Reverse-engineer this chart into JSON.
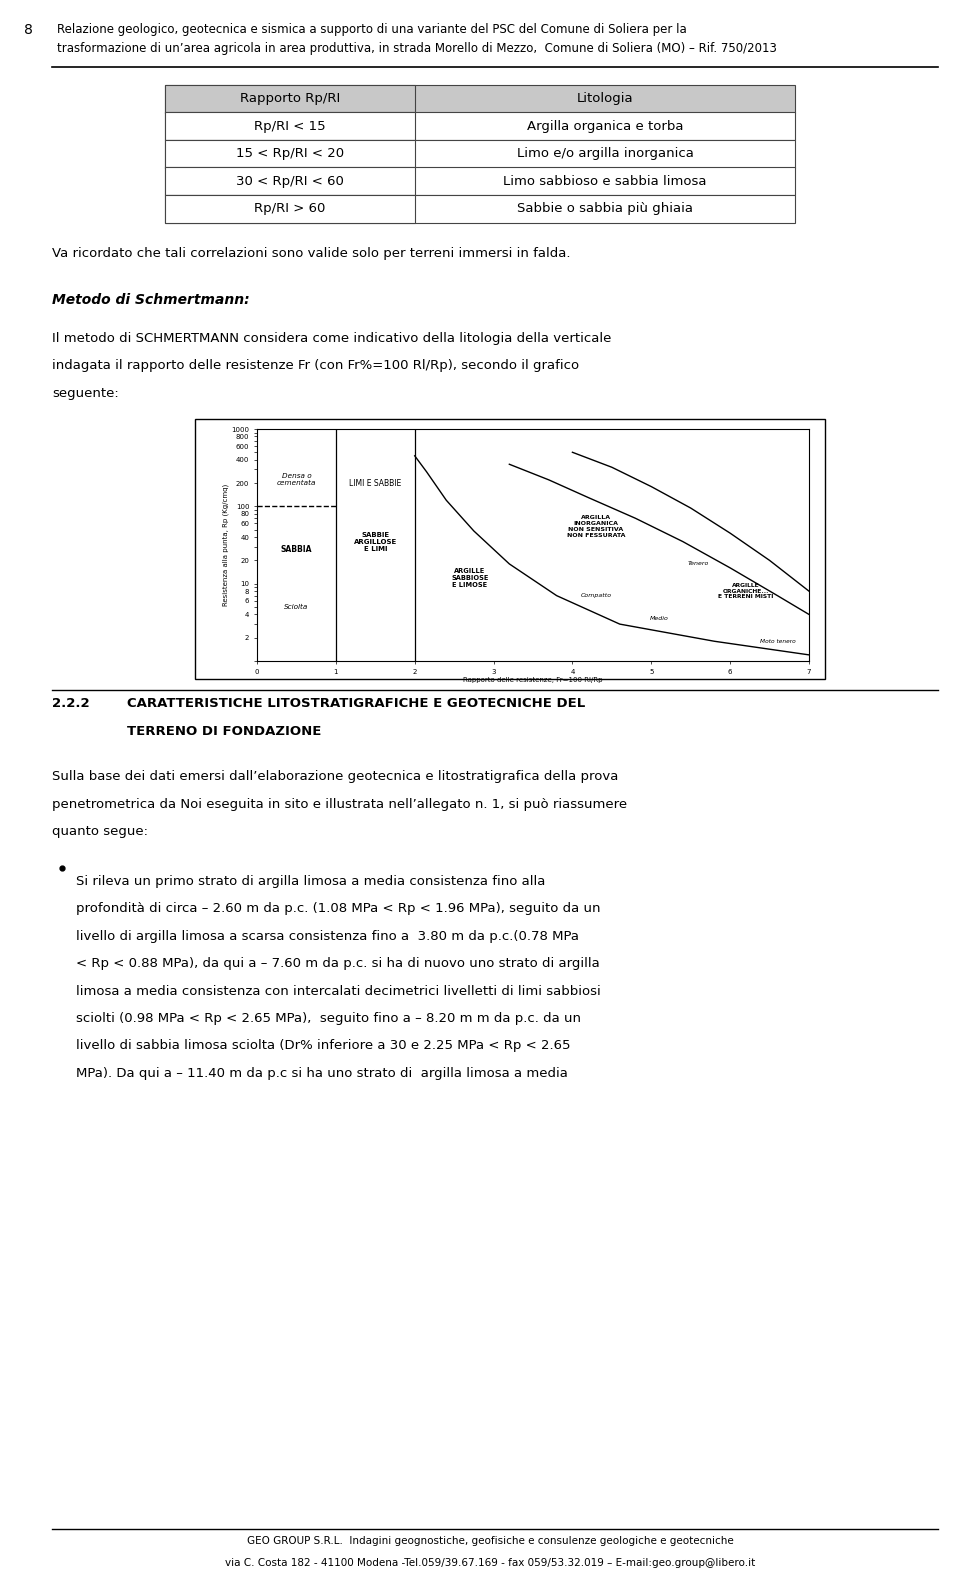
{
  "page_width": 9.6,
  "page_height": 15.49,
  "bg_color": "#ffffff",
  "page_number": "8",
  "header_line1": "Relazione geologico, geotecnica e sismica a supporto di una variante del PSC del Comune di Soliera per la",
  "header_line2": "trasformazione di un’area agricola in area produttiva, in strada Morello di Mezzo,  Comune di Soliera (MO) – Rif. 750/2013",
  "table_headers": [
    "Rapporto Rp/RI",
    "Litologia"
  ],
  "table_rows": [
    [
      "Rp/RI < 15",
      "Argilla organica e torba"
    ],
    [
      "15 < Rp/RI < 20",
      "Limo e/o argilla inorganica"
    ],
    [
      "30 < Rp/RI < 60",
      "Limo sabbioso e sabbia limosa"
    ],
    [
      "Rp/RI > 60",
      "Sabbie o sabbia più ghiaia"
    ]
  ],
  "para1": "Va ricordato che tali correlazioni sono valide solo per terreni immersi in falda.",
  "section_title": "Metodo di Schmertmann:",
  "body1_lines": [
    "Il metodo di SCHMERTMANN considera come indicativo della litologia della verticale",
    "indagata il rapporto delle resistenze Fr (con Fr%=100 Rl/Rp), secondo il grafico",
    "seguente:"
  ],
  "section_num": "2.2.2",
  "section_head1": "CARATTERISTICHE LITOSTRATIGRAFICHE E GEOTECNICHE DEL",
  "section_head2": "TERRENO DI FONDAZIONE",
  "body2_lines": [
    "Sulla base dei dati emersi dall’elaborazione geotecnica e litostratigrafica della prova",
    "penetrometrica da Noi eseguita in sito e illustrata nell’allegato n. 1, si può riassumere",
    "quanto segue:"
  ],
  "bullet_lines": [
    "Si rileva un primo strato di argilla limosa a media consistenza fino alla",
    "profondità di circa – 2.60 m da p.c. (1.08 MPa < Rp < 1.96 MPa), seguito da un",
    "livello di argilla limosa a scarsa consistenza fino a  3.80 m da p.c.(0.78 MPa",
    "< Rp < 0.88 MPa), da qui a – 7.60 m da p.c. si ha di nuovo uno strato di argilla",
    "limosa a media consistenza con intercalati decimetrici livelletti di limi sabbiosi",
    "sciolti (0.98 MPa < Rp < 2.65 MPa),  seguito fino a – 8.20 m m da p.c. da un",
    "livello di sabbia limosa sciolta (Dr% inferiore a 30 e 2.25 MPa < Rp < 2.65",
    "MPa). Da qui a – 11.40 m da p.c si ha uno strato di  argilla limosa a media"
  ],
  "footer_line1": "GEO GROUP S.R.L.  Indagini geognostiche, geofisiche e consulenze geologiche e geotecniche",
  "footer_line2": "via C. Costa 182 - 41100 Modena -Tel.059/39.67.169 - fax 059/53.32.019 – E-mail:geo.group@libero.it",
  "table_header_bg": "#c8c8c8",
  "table_border_color": "#444444"
}
